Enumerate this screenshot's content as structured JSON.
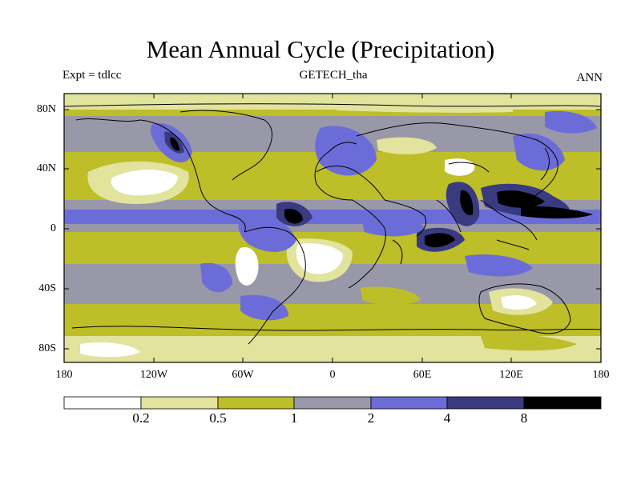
{
  "title": "Mean Annual Cycle (Precipitation)",
  "experiment": "Expt = tdlcc",
  "dataset": "GETECH_tha",
  "period": "ANN",
  "lat_ticks": [
    "80N",
    "40N",
    "0",
    "40S",
    "80S"
  ],
  "lon_ticks": [
    "180",
    "120W",
    "60W",
    "0",
    "60E",
    "120E",
    "180"
  ],
  "colorbar": {
    "labels": [
      "0.2",
      "0.5",
      "1",
      "2",
      "4",
      "8"
    ],
    "colors": [
      "#ffffff",
      "#e2e39c",
      "#bdbe28",
      "#9898a8",
      "#6c6cd8",
      "#3a3a80",
      "#000000"
    ]
  }
}
